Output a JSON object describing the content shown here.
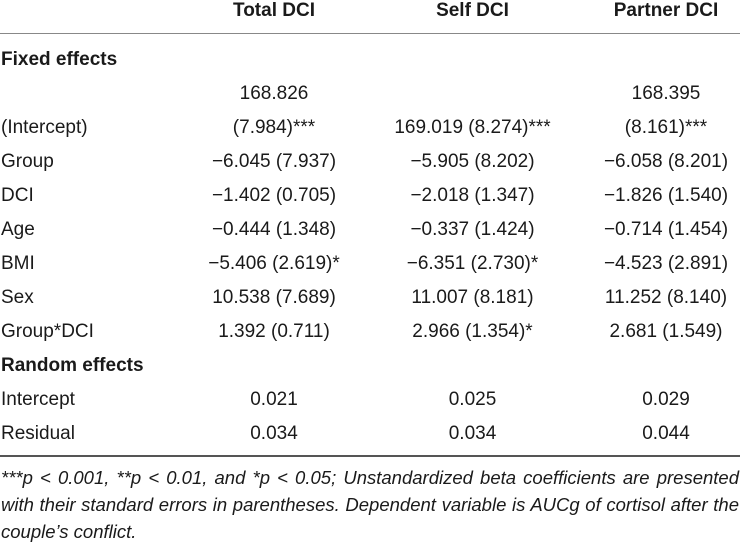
{
  "columns": [
    "",
    "Total DCI",
    "Self DCI",
    "Partner DCI"
  ],
  "sections": {
    "fixed": "Fixed effects",
    "random": "Random effects"
  },
  "rows": {
    "intercept_top": [
      "",
      "168.826",
      "",
      "168.395"
    ],
    "intercept": [
      "(Intercept)",
      "(7.984)***",
      "169.019 (8.274)***",
      "(8.161)***"
    ],
    "group": [
      "Group",
      "−6.045 (7.937)",
      "−5.905 (8.202)",
      "−6.058 (8.201)"
    ],
    "dci": [
      "DCI",
      "−1.402 (0.705)",
      "−2.018 (1.347)",
      "−1.826 (1.540)"
    ],
    "age": [
      "Age",
      "−0.444 (1.348)",
      "−0.337 (1.424)",
      "−0.714 (1.454)"
    ],
    "bmi": [
      "BMI",
      "−5.406 (2.619)*",
      "−6.351 (2.730)*",
      "−4.523 (2.891)"
    ],
    "sex": [
      "Sex",
      "10.538 (7.689)",
      "11.007 (8.181)",
      "11.252 (8.140)"
    ],
    "group_dci": [
      "Group*DCI",
      "1.392 (0.711)",
      "2.966 (1.354)*",
      "2.681 (1.549)"
    ],
    "rand_intercept": [
      "Intercept",
      "0.021",
      "0.025",
      "0.029"
    ],
    "residual": [
      "Residual",
      "0.034",
      "0.034",
      "0.044"
    ]
  },
  "footnote": "***p < 0.001, **p < 0.01, and *p < 0.05; Unstandardized beta coefficients are presented with their standard errors in parentheses. Dependent variable is AUCg of cortisol after the couple’s conflict."
}
